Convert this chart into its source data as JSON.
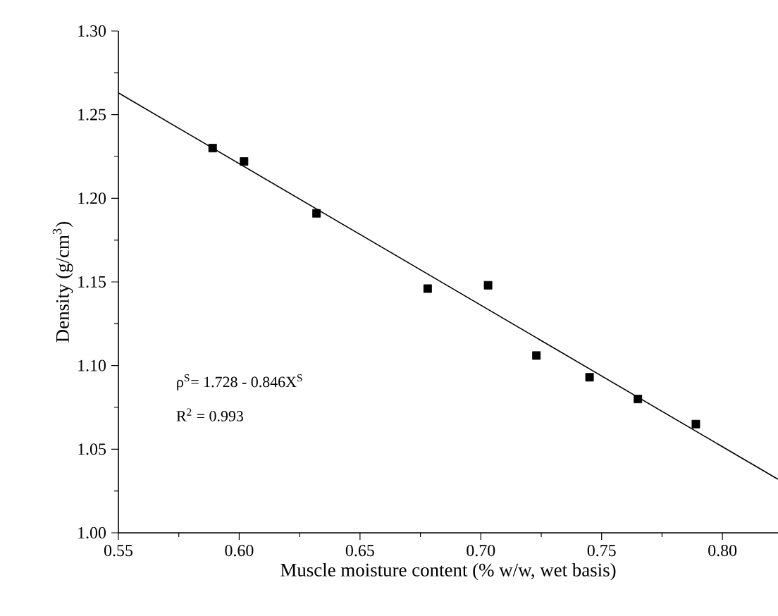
{
  "chart_data": {
    "type": "scatter",
    "xlabel": "Muscle moisture content (% w/w, wet basis)",
    "ylabel": "Density (g/cm$^{3}$)",
    "annotations": [
      "ρ$^{S}$= 1.728 - 0.846X$^{S}$",
      "R$^{2}$ = 0.993"
    ],
    "xlim": [
      0.55,
      0.823
    ],
    "ylim": [
      1.0,
      1.3
    ],
    "xticks": [
      0.55,
      {
        "value": 0.6,
        "label": "0.60"
      },
      0.65,
      {
        "value": 0.7,
        "label": "0.70"
      },
      0.75,
      {
        "value": 0.8,
        "label": "0.80"
      }
    ],
    "yticks": [
      {
        "value": 1.0,
        "label": "1.00"
      },
      1.05,
      {
        "value": 1.1,
        "label": "1.10"
      },
      1.15,
      {
        "value": 1.2,
        "label": "1.20"
      },
      1.25,
      {
        "value": 1.3,
        "label": "1.30"
      }
    ],
    "series": [
      {
        "marker": "square",
        "color": "#000000",
        "x": [
          0.589,
          0.602,
          0.632,
          0.678,
          0.703,
          0.723,
          0.745,
          0.765,
          0.789
        ],
        "values": [
          1.23,
          1.222,
          1.191,
          1.146,
          1.148,
          1.106,
          1.093,
          1.08,
          1.065
        ]
      },
      {
        "type": "line",
        "marker": "none",
        "line_style": "solid",
        "color": "#000000",
        "x": [
          0.55,
          0.823
        ],
        "values": [
          1.263,
          1.032
        ]
      }
    ]
  }
}
